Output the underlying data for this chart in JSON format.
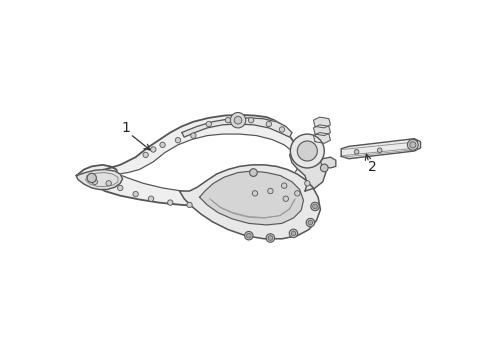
{
  "background_color": "#ffffff",
  "line_color": "#555555",
  "line_color_dark": "#333333",
  "line_color_light": "#888888",
  "fill_main": "#f0f0f0",
  "fill_dark": "#d8d8d8",
  "fill_mid": "#e4e4e4",
  "label_color": "#222222",
  "label_1": "1",
  "label_2": "2",
  "figsize": [
    4.9,
    3.6
  ],
  "dpi": 100
}
